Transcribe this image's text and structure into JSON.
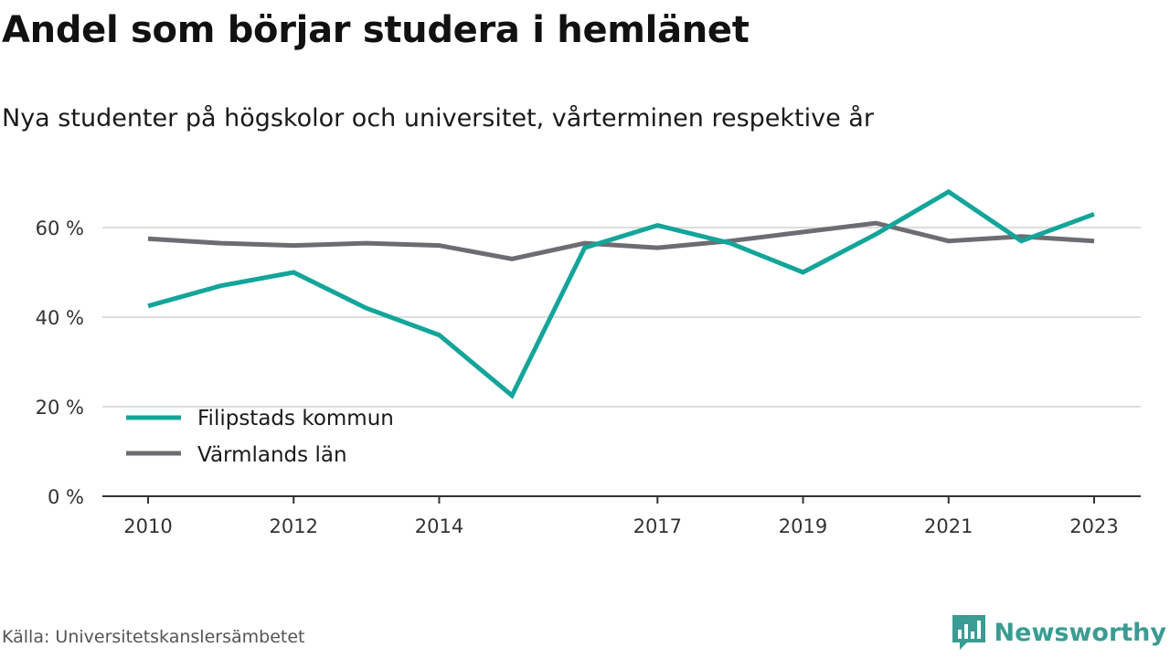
{
  "header": {
    "title": "Andel som börjar studera i hemlänet",
    "subtitle": "Nya studenter på högskolor och universitet, vårterminen respektive år"
  },
  "footer": {
    "source": "Källa: Universitetskanslersämbetet",
    "brand": "Newsworthy",
    "brand_icon": "bar-chart-icon"
  },
  "colors": {
    "filipstad": "#14a59a",
    "varmland": "#6e6c73",
    "grid": "#dddddd",
    "axis": "#333333",
    "brand": "#3a9c92"
  },
  "chart_data": {
    "type": "line",
    "x": [
      2010,
      2011,
      2012,
      2013,
      2014,
      2015,
      2016,
      2017,
      2018,
      2019,
      2020,
      2021,
      2022,
      2023
    ],
    "x_tick_labels": [
      "2010",
      "2012",
      "2014",
      "2017",
      "2019",
      "2021",
      "2023"
    ],
    "y_ticks": [
      0,
      20,
      40,
      60
    ],
    "y_tick_labels": [
      "0 %",
      "20 %",
      "40 %",
      "60 %"
    ],
    "ylim": [
      0,
      70
    ],
    "grid": true,
    "legend_position": "bottom-left",
    "series": [
      {
        "name": "Filipstads kommun",
        "color": "#14a59a",
        "values": [
          42.5,
          47,
          50,
          42,
          36,
          22.5,
          55.5,
          60.5,
          56.5,
          50,
          58.5,
          68,
          57,
          63
        ]
      },
      {
        "name": "Värmlands län",
        "color": "#6e6c73",
        "values": [
          57.5,
          56.5,
          56,
          56.5,
          56,
          53,
          56.5,
          55.5,
          57,
          59,
          61,
          57,
          58,
          57
        ]
      }
    ]
  }
}
